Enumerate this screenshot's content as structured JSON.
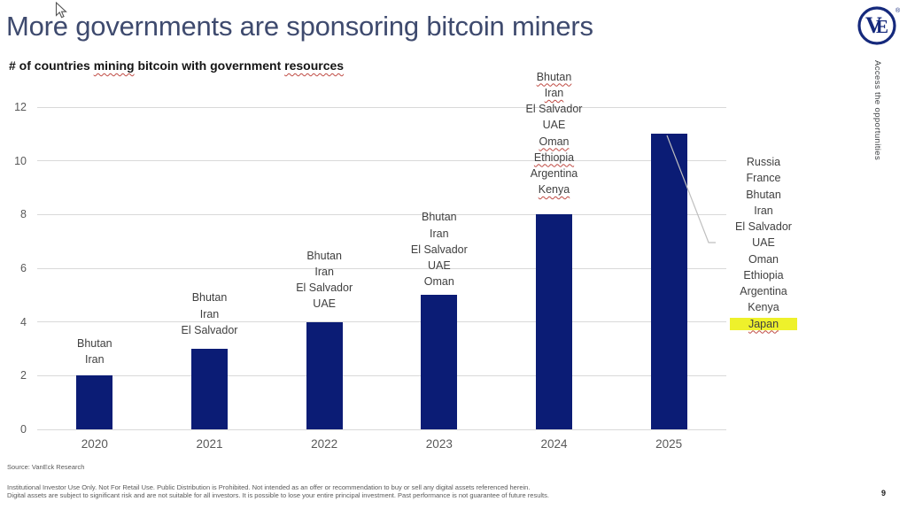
{
  "slide": {
    "title": "More governments are sponsoring bitcoin miners",
    "subtitle_parts": [
      {
        "text": "# of countries ",
        "squiggle": false
      },
      {
        "text": "mining",
        "squiggle": true
      },
      {
        "text": " bitcoin with government ",
        "squiggle": false
      },
      {
        "text": "resources",
        "squiggle": true
      }
    ],
    "side_text": "Access the opportunities",
    "logo": {
      "monogram_v": "V",
      "monogram_e": "E",
      "registered": "®"
    },
    "source": "Source: VanEck Research",
    "disclaimer": [
      "Institutional Investor Use Only. Not For Retail Use. Public Distribution is Prohibited. Not intended as an offer or recommendation to buy or sell any digital assets referenced herein.",
      "Digital assets are subject to significant risk and are not suitable for all investors. It is possible to lose your entire principal investment. Past performance is not guarantee of future results."
    ],
    "page_number": "9"
  },
  "chart_data": {
    "type": "bar",
    "title": "# of countries mining bitcoin with government resources",
    "categories": [
      "2020",
      "2021",
      "2022",
      "2023",
      "2024",
      "2025"
    ],
    "values": [
      2,
      3,
      4,
      5,
      8,
      11
    ],
    "ylim": [
      0,
      12
    ],
    "yticks": [
      0,
      2,
      4,
      6,
      8,
      10,
      12
    ],
    "grid": true,
    "legend": "none",
    "bar_color": "#0b1c75",
    "gridline_color": "#d9d9d9",
    "axis_text_color": "#595959",
    "label_text_color": "#404040",
    "columns": [
      {
        "year": "2020",
        "value": 2,
        "countries": [
          "Bhutan",
          "Iran"
        ],
        "squiggled": []
      },
      {
        "year": "2021",
        "value": 3,
        "countries": [
          "Bhutan",
          "Iran",
          "El Salvador"
        ],
        "squiggled": []
      },
      {
        "year": "2022",
        "value": 4,
        "countries": [
          "Bhutan",
          "Iran",
          "El Salvador",
          "UAE"
        ],
        "squiggled": []
      },
      {
        "year": "2023",
        "value": 5,
        "countries": [
          "Bhutan",
          "Iran",
          "El Salvador",
          "UAE",
          "Oman"
        ],
        "squiggled": []
      },
      {
        "year": "2024",
        "value": 8,
        "countries": [
          "Bhutan",
          "Iran",
          "El Salvador",
          "UAE",
          "Oman",
          "Ethiopia",
          "Argentina",
          "Kenya"
        ],
        "squiggled": [
          "Bhutan",
          "Iran",
          "Oman",
          "Ethiopia",
          "Kenya"
        ]
      },
      {
        "year": "2025",
        "value": 11,
        "countries": [],
        "squiggled": []
      }
    ],
    "right_list": {
      "items": [
        "Russia",
        "France",
        "Bhutan",
        "Iran",
        "El Salvador",
        "UAE",
        "Oman",
        "Ethiopia",
        "Argentina",
        "Kenya",
        "Japan"
      ],
      "highlighted": "Japan",
      "highlight_color": "#eef12b"
    }
  }
}
